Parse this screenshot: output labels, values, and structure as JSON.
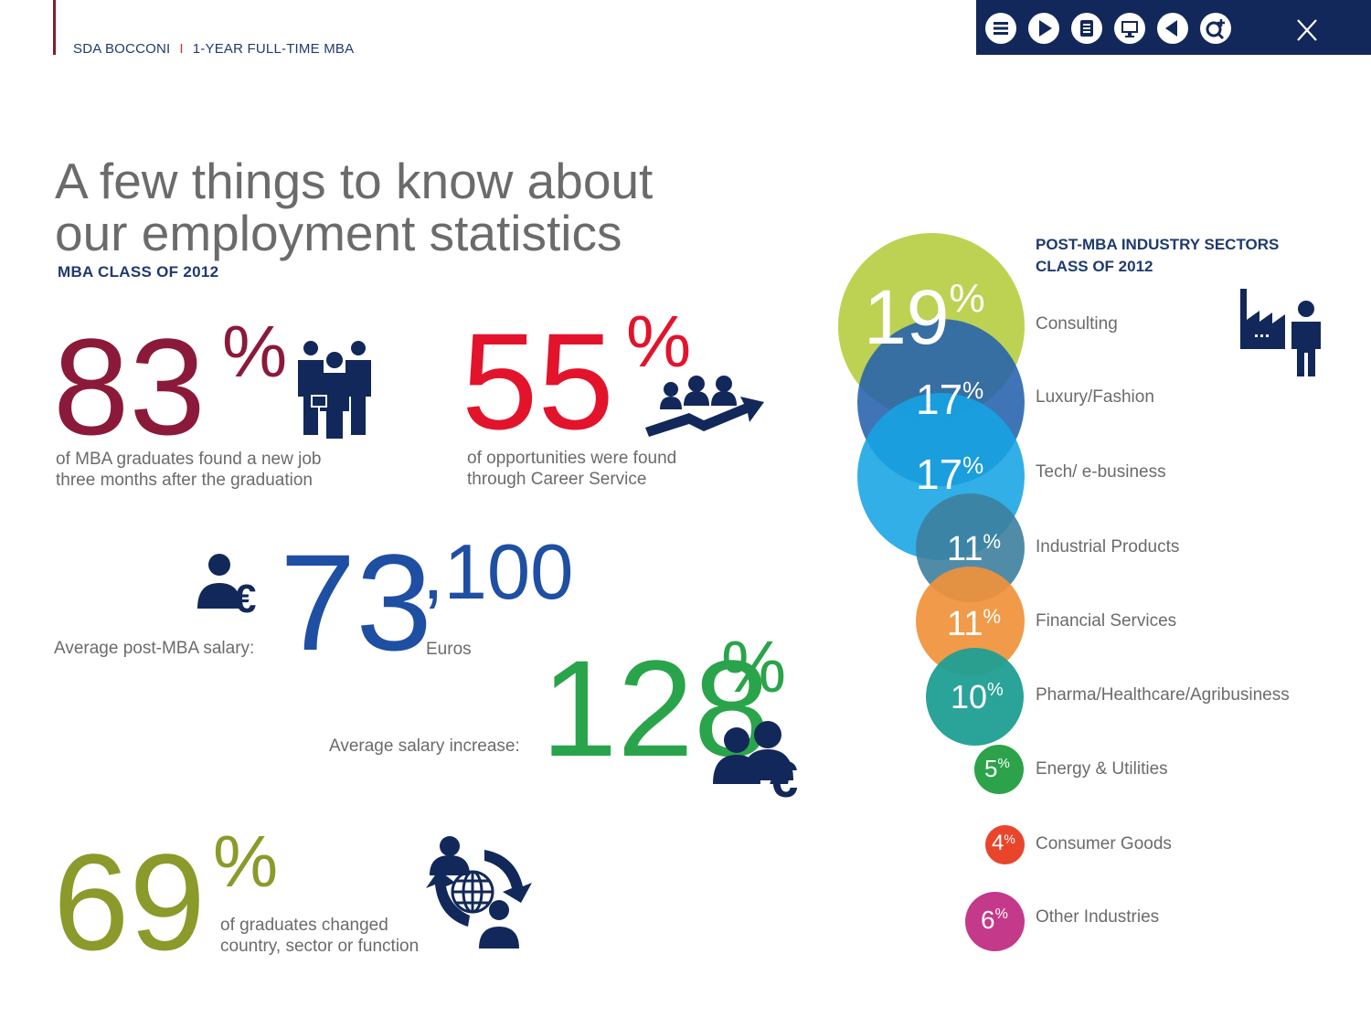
{
  "header": {
    "brand": "SDA BOCCONI",
    "separator": "I",
    "program": "1-YEAR FULL-TIME MBA"
  },
  "toolbar": {
    "buttons": [
      "menu-icon",
      "play-icon",
      "notes-icon",
      "monitor-icon",
      "back-icon",
      "zoom-in-icon"
    ],
    "close_label": "X"
  },
  "title": {
    "line1": "A few things to know about",
    "line2": "our employment statistics"
  },
  "subtitle": "MBA CLASS OF 2012",
  "stats": {
    "job": {
      "value": "83",
      "unit": "%",
      "line1": "of  MBA graduates found a new job",
      "line2": "three months after the graduation",
      "color": "#8b1a3a"
    },
    "career": {
      "value": "55",
      "unit": "%",
      "line1": "of opportunities were found",
      "line2": "through Career Service",
      "color": "#e3132b"
    },
    "salary": {
      "label": "Average post-MBA salary:",
      "value": "73",
      "thousands": ",100",
      "currency": "Euros",
      "color": "#1f4fa3"
    },
    "increase": {
      "label": "Average salary increase:",
      "value": "128",
      "unit": "%",
      "color": "#2aa44a"
    },
    "changed": {
      "value": "69",
      "unit": "%",
      "line1": "of graduates changed",
      "line2": "country, sector or function",
      "color": "#8b9a2a"
    }
  },
  "sectors": {
    "title_line1": "POST-MBA INDUSTRY SECTORS",
    "title_line2": "CLASS OF 2012",
    "items": [
      {
        "value": "19",
        "unit": "%",
        "name": "Consulting",
        "color": "#b9d04a"
      },
      {
        "value": "17",
        "unit": "%",
        "name": "Luxury/Fashion",
        "color": "#2461ad"
      },
      {
        "value": "17",
        "unit": "%",
        "name": "Tech/ e-business",
        "color": "#16a4e4"
      },
      {
        "value": "11",
        "unit": "%",
        "name": "Industrial Products",
        "color": "#3d7f9f"
      },
      {
        "value": "11",
        "unit": "%",
        "name": "Financial Services",
        "color": "#f0913a"
      },
      {
        "value": "10",
        "unit": "%",
        "name": "Pharma/Healthcare/Agribusiness",
        "color": "#1f9e93"
      },
      {
        "value": "5",
        "unit": "%",
        "name": "Energy & Utilities",
        "color": "#2ca34a"
      },
      {
        "value": "4",
        "unit": "%",
        "name": "Consumer Goods",
        "color": "#e8452c"
      },
      {
        "value": "6",
        "unit": "%",
        "name": "Other Industries",
        "color": "#c4398a"
      }
    ]
  }
}
